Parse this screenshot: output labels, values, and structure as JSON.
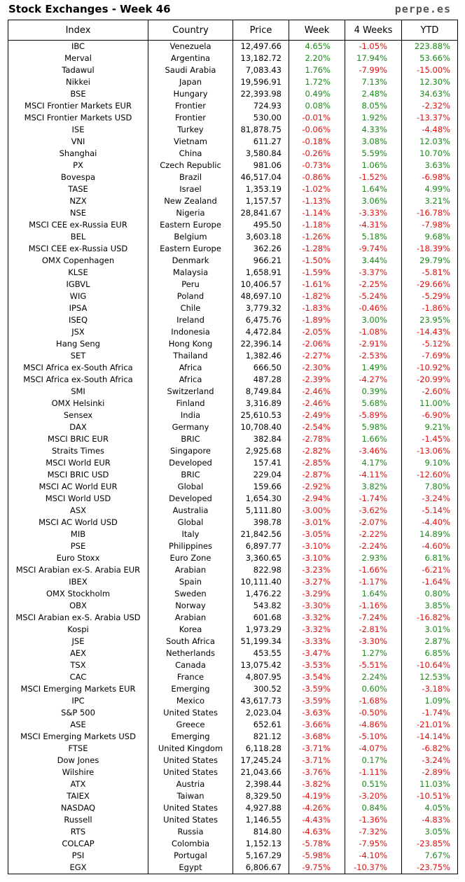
{
  "header": {
    "title": "Stock Exchanges - Week 46",
    "site": "perpe.es"
  },
  "columns": [
    "Index",
    "Country",
    "Price",
    "Week",
    "4 Weeks",
    "YTD"
  ],
  "colors": {
    "positive": "#1a8a1a",
    "negative": "#e01010"
  },
  "rows": [
    [
      "IBC",
      "Venezuela",
      "12,497.66",
      "4.65%",
      "-1.05%",
      "223.88%"
    ],
    [
      "Merval",
      "Argentina",
      "13,182.72",
      "2.20%",
      "17.94%",
      "53.66%"
    ],
    [
      "Tadawul",
      "Saudi Arabia",
      "7,083.43",
      "1.76%",
      "-7.99%",
      "-15.00%"
    ],
    [
      "Nikkei",
      "Japan",
      "19,596.91",
      "1.72%",
      "7.13%",
      "12.30%"
    ],
    [
      "BSE",
      "Hungary",
      "22,393.98",
      "0.49%",
      "2.48%",
      "34.63%"
    ],
    [
      "MSCI Frontier Markets EUR",
      "Frontier",
      "724.93",
      "0.08%",
      "8.05%",
      "-2.32%"
    ],
    [
      "MSCI Frontier Markets USD",
      "Frontier",
      "530.00",
      "-0.01%",
      "1.92%",
      "-13.37%"
    ],
    [
      "ISE",
      "Turkey",
      "81,878.75",
      "-0.06%",
      "4.33%",
      "-4.48%"
    ],
    [
      "VNI",
      "Vietnam",
      "611.27",
      "-0.18%",
      "3.08%",
      "12.03%"
    ],
    [
      "Shanghai",
      "China",
      "3,580.84",
      "-0.26%",
      "5.59%",
      "10.70%"
    ],
    [
      "PX",
      "Czech Republic",
      "981.06",
      "-0.73%",
      "1.06%",
      "3.63%"
    ],
    [
      "Bovespa",
      "Brazil",
      "46,517.04",
      "-0.86%",
      "-1.52%",
      "-6.98%"
    ],
    [
      "TASE",
      "Israel",
      "1,353.19",
      "-1.02%",
      "1.64%",
      "4.99%"
    ],
    [
      "NZX",
      "New Zealand",
      "1,157.57",
      "-1.13%",
      "3.06%",
      "3.21%"
    ],
    [
      "NSE",
      "Nigeria",
      "28,841.67",
      "-1.14%",
      "-3.33%",
      "-16.78%"
    ],
    [
      "MSCI CEE ex-Russia EUR",
      "Eastern Europe",
      "495.50",
      "-1.18%",
      "-4.31%",
      "-7.98%"
    ],
    [
      "BEL",
      "Belgium",
      "3,603.18",
      "-1.26%",
      "5.18%",
      "9.68%"
    ],
    [
      "MSCI CEE ex-Russia USD",
      "Eastern Europe",
      "362.26",
      "-1.28%",
      "-9.74%",
      "-18.39%"
    ],
    [
      "OMX Copenhagen",
      "Denmark",
      "966.21",
      "-1.50%",
      "3.44%",
      "29.79%"
    ],
    [
      "KLSE",
      "Malaysia",
      "1,658.91",
      "-1.59%",
      "-3.37%",
      "-5.81%"
    ],
    [
      "IGBVL",
      "Peru",
      "10,406.57",
      "-1.61%",
      "-2.25%",
      "-29.66%"
    ],
    [
      "WIG",
      "Poland",
      "48,697.10",
      "-1.82%",
      "-5.24%",
      "-5.29%"
    ],
    [
      "IPSA",
      "Chile",
      "3,779.32",
      "-1.83%",
      "-0.46%",
      "-1.86%"
    ],
    [
      "ISEQ",
      "Ireland",
      "6,475.76",
      "-1.89%",
      "3.00%",
      "23.95%"
    ],
    [
      "JSX",
      "Indonesia",
      "4,472.84",
      "-2.05%",
      "-1.08%",
      "-14.43%"
    ],
    [
      "Hang Seng",
      "Hong Kong",
      "22,396.14",
      "-2.06%",
      "-2.91%",
      "-5.12%"
    ],
    [
      "SET",
      "Thailand",
      "1,382.46",
      "-2.27%",
      "-2.53%",
      "-7.69%"
    ],
    [
      "MSCI Africa ex-South Africa",
      "Africa",
      "666.50",
      "-2.30%",
      "1.49%",
      "-10.92%"
    ],
    [
      "MSCI Africa ex-South Africa",
      "Africa",
      "487.28",
      "-2.39%",
      "-4.27%",
      "-20.99%"
    ],
    [
      "SMI",
      "Switzerland",
      "8,749.84",
      "-2.46%",
      "0.39%",
      "-2.60%"
    ],
    [
      "OMX Helsinki",
      "Finland",
      "3,316.89",
      "-2.46%",
      "5.68%",
      "11.00%"
    ],
    [
      "Sensex",
      "India",
      "25,610.53",
      "-2.49%",
      "-5.89%",
      "-6.90%"
    ],
    [
      "DAX",
      "Germany",
      "10,708.40",
      "-2.54%",
      "5.98%",
      "9.21%"
    ],
    [
      "MSCI BRIC EUR",
      "BRIC",
      "382.84",
      "-2.78%",
      "1.66%",
      "-1.45%"
    ],
    [
      "Straits Times",
      "Singapore",
      "2,925.68",
      "-2.82%",
      "-3.46%",
      "-13.06%"
    ],
    [
      "MSCI World EUR",
      "Developed",
      "157.41",
      "-2.85%",
      "4.17%",
      "9.10%"
    ],
    [
      "MSCI BRIC USD",
      "BRIC",
      "229.04",
      "-2.87%",
      "-4.11%",
      "-12.60%"
    ],
    [
      "MSCI AC World EUR",
      "Global",
      "159.66",
      "-2.92%",
      "3.82%",
      "7.80%"
    ],
    [
      "MSCI World USD",
      "Developed",
      "1,654.30",
      "-2.94%",
      "-1.74%",
      "-3.24%"
    ],
    [
      "ASX",
      "Australia",
      "5,111.80",
      "-3.00%",
      "-3.62%",
      "-5.14%"
    ],
    [
      "MSCI AC World USD",
      "Global",
      "398.78",
      "-3.01%",
      "-2.07%",
      "-4.40%"
    ],
    [
      "MIB",
      "Italy",
      "21,842.56",
      "-3.05%",
      "-2.22%",
      "14.89%"
    ],
    [
      "PSE",
      "Philippines",
      "6,897.77",
      "-3.10%",
      "-2.24%",
      "-4.60%"
    ],
    [
      "Euro Stoxx",
      "Euro Zone",
      "3,360.65",
      "-3.10%",
      "2.93%",
      "6.81%"
    ],
    [
      "MSCI Arabian ex-S. Arabia EUR",
      "Arabian",
      "822.98",
      "-3.23%",
      "-1.66%",
      "-6.21%"
    ],
    [
      "IBEX",
      "Spain",
      "10,111.40",
      "-3.27%",
      "-1.17%",
      "-1.64%"
    ],
    [
      "OMX Stockholm",
      "Sweden",
      "1,476.22",
      "-3.29%",
      "1.64%",
      "0.80%"
    ],
    [
      "OBX",
      "Norway",
      "543.82",
      "-3.30%",
      "-1.16%",
      "3.85%"
    ],
    [
      "MSCI Arabian ex-S. Arabia USD",
      "Arabian",
      "601.68",
      "-3.32%",
      "-7.24%",
      "-16.82%"
    ],
    [
      "Kospi",
      "Korea",
      "1,973.29",
      "-3.32%",
      "-2.81%",
      "3.01%"
    ],
    [
      "JSE",
      "South Africa",
      "51,199.34",
      "-3.33%",
      "-3.30%",
      "2.87%"
    ],
    [
      "AEX",
      "Netherlands",
      "453.55",
      "-3.47%",
      "1.27%",
      "6.85%"
    ],
    [
      "TSX",
      "Canada",
      "13,075.42",
      "-3.53%",
      "-5.51%",
      "-10.64%"
    ],
    [
      "CAC",
      "France",
      "4,807.95",
      "-3.54%",
      "2.24%",
      "12.53%"
    ],
    [
      "MSCI Emerging Markets EUR",
      "Emerging",
      "300.52",
      "-3.59%",
      "0.60%",
      "-3.18%"
    ],
    [
      "IPC",
      "Mexico",
      "43,617.73",
      "-3.59%",
      "-1.68%",
      "1.09%"
    ],
    [
      "S&P 500",
      "United States",
      "2,023.04",
      "-3.63%",
      "-0.50%",
      "-1.74%"
    ],
    [
      "ASE",
      "Greece",
      "652.61",
      "-3.66%",
      "-4.86%",
      "-21.01%"
    ],
    [
      "MSCI Emerging Markets USD",
      "Emerging",
      "821.12",
      "-3.68%",
      "-5.10%",
      "-14.14%"
    ],
    [
      "FTSE",
      "United Kingdom",
      "6,118.28",
      "-3.71%",
      "-4.07%",
      "-6.82%"
    ],
    [
      "Dow Jones",
      "United States",
      "17,245.24",
      "-3.71%",
      "0.17%",
      "-3.24%"
    ],
    [
      "Wilshire",
      "United States",
      "21,043.66",
      "-3.76%",
      "-1.11%",
      "-2.89%"
    ],
    [
      "ATX",
      "Austria",
      "2,398.44",
      "-3.82%",
      "0.51%",
      "11.03%"
    ],
    [
      "TAIEX",
      "Taiwan",
      "8,329.50",
      "-4.19%",
      "-3.20%",
      "-10.51%"
    ],
    [
      "NASDAQ",
      "United States",
      "4,927.88",
      "-4.26%",
      "0.84%",
      "4.05%"
    ],
    [
      "Russell",
      "United States",
      "1,146.55",
      "-4.43%",
      "-1.36%",
      "-4.83%"
    ],
    [
      "RTS",
      "Russia",
      "814.80",
      "-4.63%",
      "-7.32%",
      "3.05%"
    ],
    [
      "COLCAP",
      "Colombia",
      "1,152.13",
      "-5.78%",
      "-7.95%",
      "-23.85%"
    ],
    [
      "PSI",
      "Portugal",
      "5,167.29",
      "-5.98%",
      "-4.10%",
      "7.67%"
    ],
    [
      "EGX",
      "Egypt",
      "6,806.67",
      "-9.75%",
      "-10.37%",
      "-23.75%"
    ]
  ]
}
